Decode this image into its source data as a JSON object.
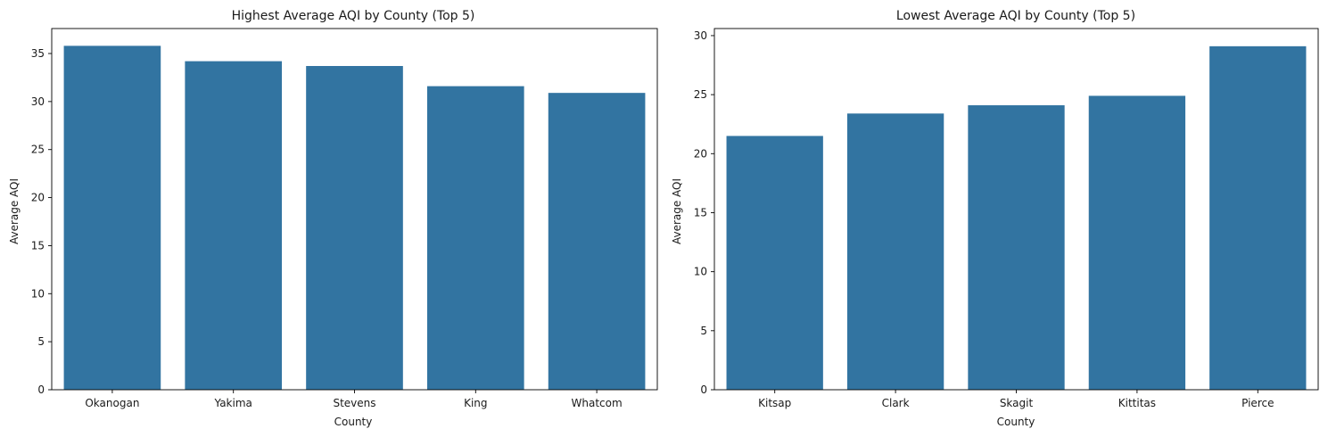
{
  "bar_color": "#3274a1",
  "chart_data": [
    {
      "type": "bar",
      "title": "Highest Average AQI by County (Top 5)",
      "xlabel": "County",
      "ylabel": "Average AQI",
      "categories": [
        "Okanogan",
        "Yakima",
        "Stevens",
        "King",
        "Whatcom"
      ],
      "values": [
        35.8,
        34.2,
        33.7,
        31.6,
        30.9
      ],
      "ylim": [
        0,
        37.6
      ],
      "yticks": [
        0,
        5,
        10,
        15,
        20,
        25,
        30,
        35
      ],
      "grid": false,
      "legend": "none"
    },
    {
      "type": "bar",
      "title": "Lowest Average AQI by County (Top 5)",
      "xlabel": "County",
      "ylabel": "Average AQI",
      "categories": [
        "Kitsap",
        "Clark",
        "Skagit",
        "Kittitas",
        "Pierce"
      ],
      "values": [
        21.5,
        23.4,
        24.1,
        24.9,
        29.1
      ],
      "ylim": [
        0,
        30.6
      ],
      "yticks": [
        0,
        5,
        10,
        15,
        20,
        25,
        30
      ],
      "grid": false,
      "legend": "none"
    }
  ]
}
